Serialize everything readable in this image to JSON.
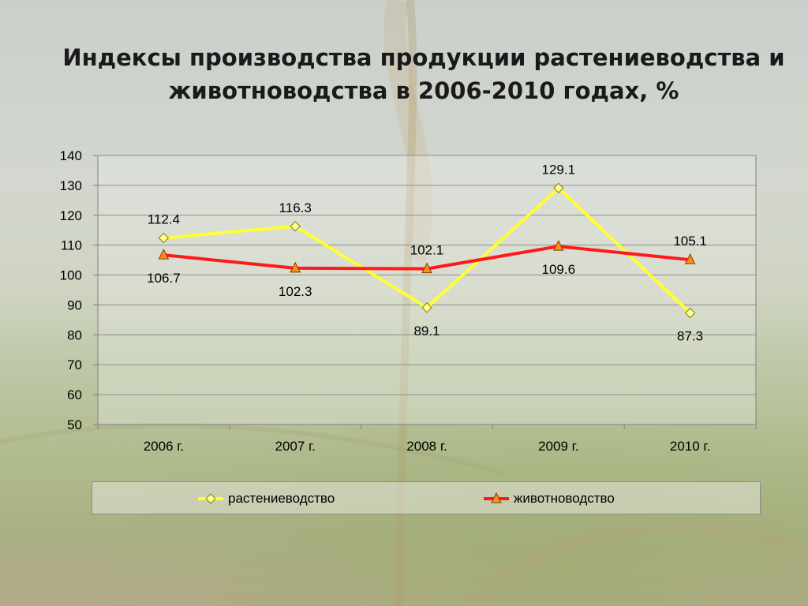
{
  "slide": {
    "title_line1": "Индексы производства продукции растениеводства и",
    "title_line2": "животноводства в 2006-2010 годах, %"
  },
  "chart_data": {
    "type": "line",
    "title": "Индексы производства продукции растениеводства и животноводства в 2006-2010 годах, %",
    "categories": [
      "2006 г.",
      "2007 г.",
      "2008 г.",
      "2009 г.",
      "2010 г."
    ],
    "yticks": [
      "140",
      "130",
      "120",
      "110",
      "100",
      "90",
      "80",
      "70",
      "60",
      "50"
    ],
    "ylim": [
      50,
      140
    ],
    "grid": true,
    "legend_position": "bottom",
    "series": [
      {
        "name": "растениеводство",
        "values": [
          112.4,
          116.3,
          89.1,
          129.1,
          87.3
        ],
        "labels": [
          "112.4",
          "116.3",
          "89.1",
          "129.1",
          "87.3"
        ],
        "color": "#ffff33",
        "marker": "diamond",
        "marker_color": "#ffff99"
      },
      {
        "name": "животноводство",
        "values": [
          106.7,
          102.3,
          102.1,
          109.6,
          105.1
        ],
        "labels": [
          "106.7",
          "102.3",
          "102.1",
          "109.6",
          "105.1"
        ],
        "color": "#ff1a1a",
        "marker": "triangle",
        "marker_color": "#ff8c1a"
      }
    ]
  }
}
